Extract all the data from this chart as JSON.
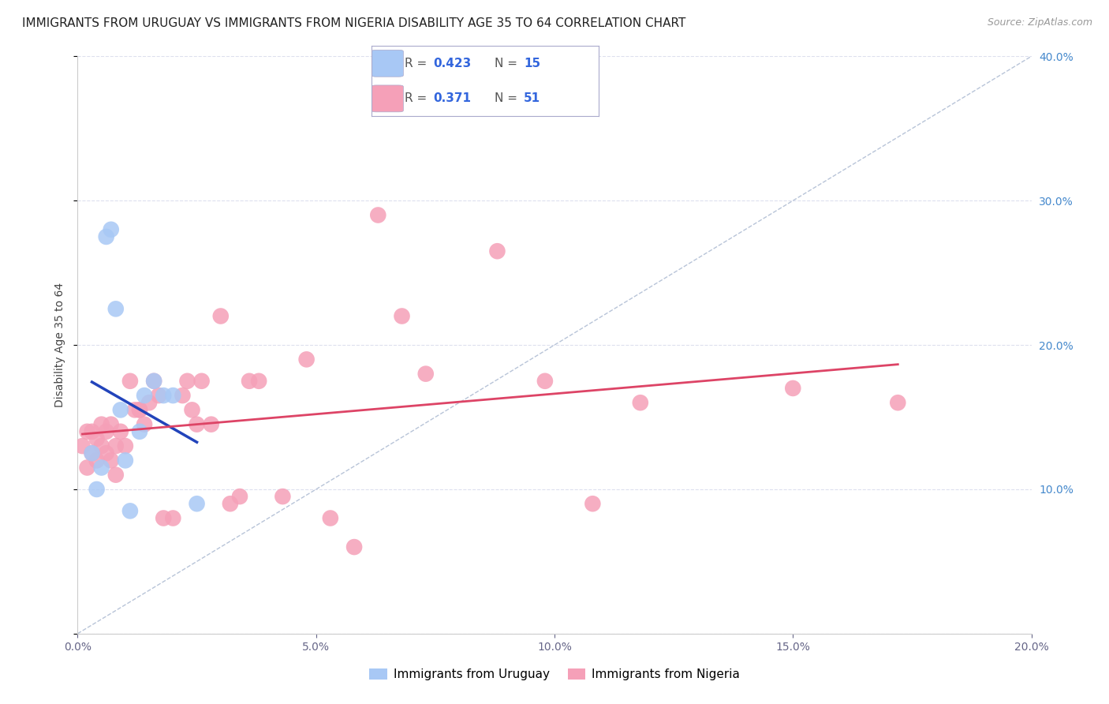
{
  "title": "IMMIGRANTS FROM URUGUAY VS IMMIGRANTS FROM NIGERIA DISABILITY AGE 35 TO 64 CORRELATION CHART",
  "source": "Source: ZipAtlas.com",
  "ylabel": "Disability Age 35 to 64",
  "xlim": [
    0.0,
    0.2
  ],
  "ylim": [
    0.0,
    0.4
  ],
  "uruguay_color": "#a8c8f5",
  "nigeria_color": "#f5a0b8",
  "trend_uruguay_color": "#2244bb",
  "trend_nigeria_color": "#dd4466",
  "diag_color": "#b8c4d8",
  "legend_label_uruguay": "Immigrants from Uruguay",
  "legend_label_nigeria": "Immigrants from Nigeria",
  "r_color": "#3366dd",
  "grid_color": "#dde0ee",
  "background_color": "#ffffff",
  "title_fontsize": 11,
  "axis_label_fontsize": 10,
  "tick_fontsize": 10,
  "legend_fontsize": 11,
  "uruguay_points_x": [
    0.003,
    0.004,
    0.005,
    0.006,
    0.007,
    0.008,
    0.009,
    0.01,
    0.011,
    0.013,
    0.014,
    0.016,
    0.018,
    0.02,
    0.025
  ],
  "uruguay_points_y": [
    0.125,
    0.1,
    0.115,
    0.275,
    0.28,
    0.225,
    0.155,
    0.12,
    0.085,
    0.14,
    0.165,
    0.175,
    0.165,
    0.165,
    0.09
  ],
  "nigeria_points_x": [
    0.001,
    0.002,
    0.002,
    0.003,
    0.003,
    0.004,
    0.004,
    0.005,
    0.005,
    0.006,
    0.006,
    0.007,
    0.007,
    0.008,
    0.008,
    0.009,
    0.01,
    0.011,
    0.012,
    0.013,
    0.013,
    0.014,
    0.015,
    0.016,
    0.017,
    0.018,
    0.02,
    0.022,
    0.023,
    0.024,
    0.025,
    0.026,
    0.028,
    0.03,
    0.032,
    0.034,
    0.036,
    0.038,
    0.043,
    0.048,
    0.053,
    0.058,
    0.063,
    0.068,
    0.073,
    0.088,
    0.098,
    0.108,
    0.118,
    0.15,
    0.172
  ],
  "nigeria_points_y": [
    0.13,
    0.115,
    0.14,
    0.125,
    0.14,
    0.12,
    0.135,
    0.13,
    0.145,
    0.125,
    0.14,
    0.12,
    0.145,
    0.13,
    0.11,
    0.14,
    0.13,
    0.175,
    0.155,
    0.155,
    0.155,
    0.145,
    0.16,
    0.175,
    0.165,
    0.08,
    0.08,
    0.165,
    0.175,
    0.155,
    0.145,
    0.175,
    0.145,
    0.22,
    0.09,
    0.095,
    0.175,
    0.175,
    0.095,
    0.19,
    0.08,
    0.06,
    0.29,
    0.22,
    0.18,
    0.265,
    0.175,
    0.09,
    0.16,
    0.17,
    0.16
  ],
  "xticks": [
    0.0,
    0.05,
    0.1,
    0.15,
    0.2
  ],
  "yticks": [
    0.0,
    0.1,
    0.2,
    0.3,
    0.4
  ],
  "xticklabels": [
    "0.0%",
    "5.0%",
    "10.0%",
    "15.0%",
    "20.0%"
  ],
  "yticklabels_right": [
    "",
    "10.0%",
    "20.0%",
    "30.0%",
    "40.0%"
  ]
}
